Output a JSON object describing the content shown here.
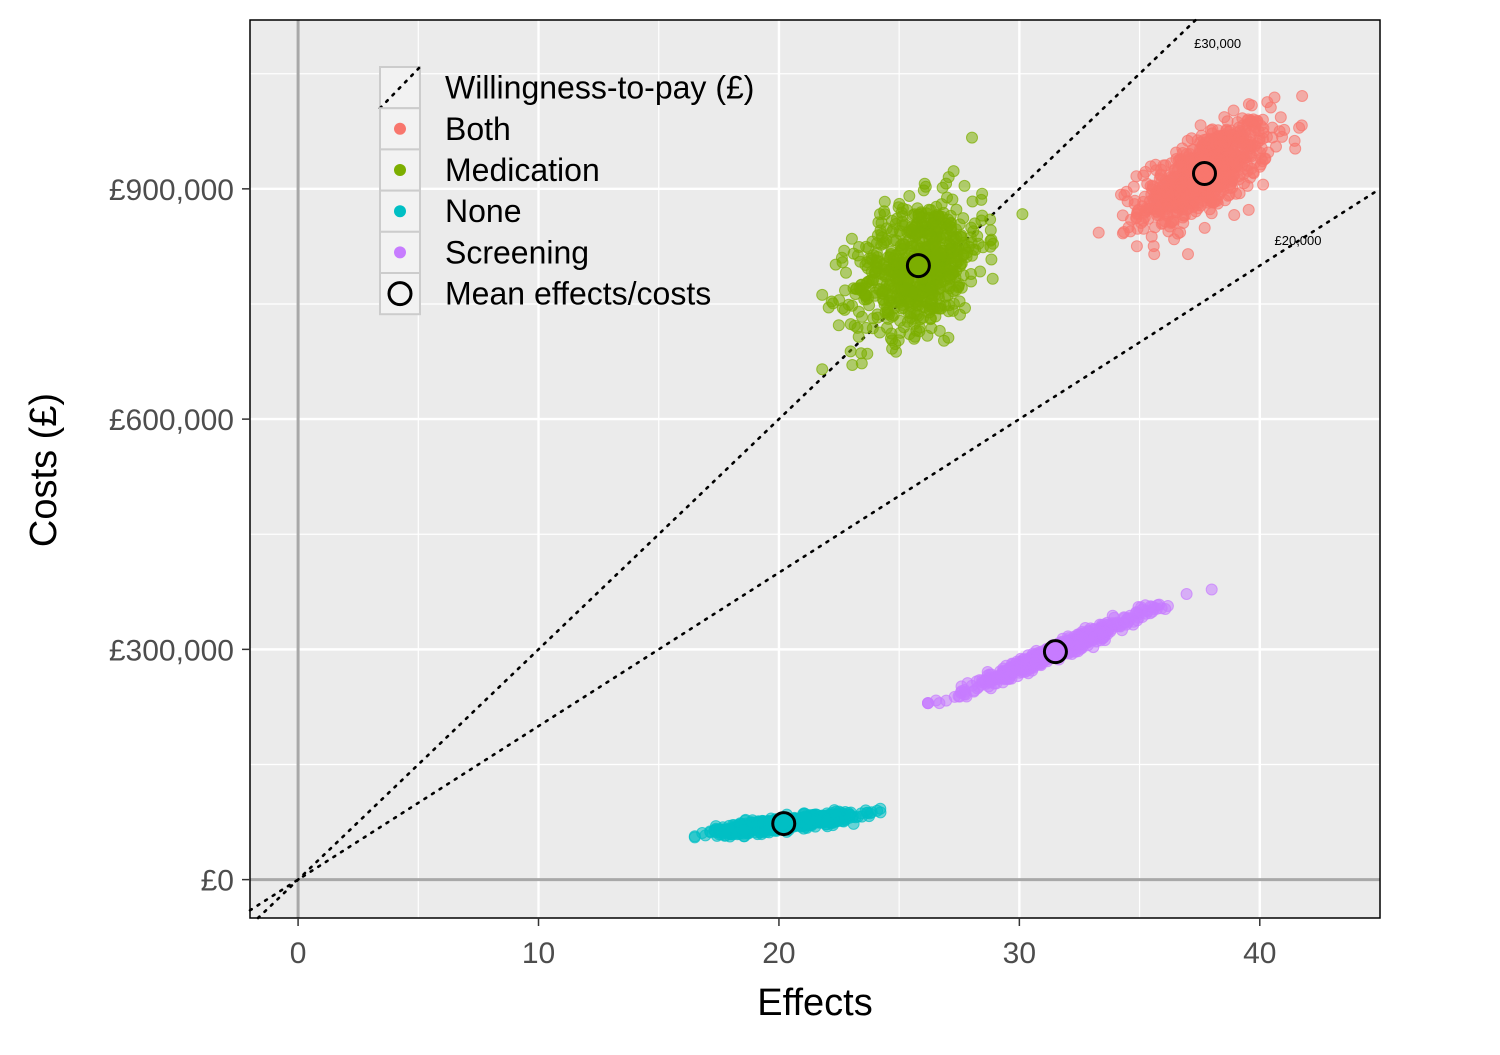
{
  "chart_data": {
    "type": "scatter",
    "title": "",
    "xlabel": "Effects",
    "ylabel": "Costs (£)",
    "xlim": [
      -2,
      45
    ],
    "ylim": [
      -50000,
      1120000
    ],
    "x_ticks": [
      0,
      10,
      20,
      30,
      40
    ],
    "y_ticks": [
      0,
      300000,
      600000,
      900000
    ],
    "y_tick_labels": [
      "£0",
      "£300,000",
      "£600,000",
      "£900,000"
    ],
    "grid": true,
    "legend_position": "top-left",
    "legend_title": "",
    "wtp_legend_label": "Willingness-to-pay (£)",
    "mean_legend_label": "Mean effects/costs",
    "wtp_lines": [
      {
        "slope": 30000,
        "label": "£30,000"
      },
      {
        "slope": 20000,
        "label": "£20,000"
      }
    ],
    "series": [
      {
        "name": "Both",
        "color": "#F8766D",
        "mean": [
          37.7,
          920000
        ],
        "cloud": {
          "x_range": [
            33.3,
            42.9
          ],
          "y_range": [
            815000,
            1075000
          ],
          "corr": 0.65,
          "sx": 1.35,
          "sy": 34000
        }
      },
      {
        "name": "Medication",
        "color": "#7CAE00",
        "mean": [
          25.8,
          800000
        ],
        "cloud": {
          "x_range": [
            21.8,
            30.8
          ],
          "y_range": [
            665000,
            995000
          ],
          "corr": 0.35,
          "sx": 1.35,
          "sy": 44000
        }
      },
      {
        "name": "None",
        "color": "#00BFC4",
        "mean": [
          20.2,
          73000
        ],
        "cloud": {
          "x_range": [
            16.5,
            25.5
          ],
          "y_range": [
            55000,
            105000
          ],
          "corr": 0.8,
          "sx": 1.4,
          "sy": 6500
        }
      },
      {
        "name": "Screening",
        "color": "#C77CFF",
        "mean": [
          31.5,
          297000
        ],
        "cloud": {
          "x_range": [
            26.2,
            38.0
          ],
          "y_range": [
            230000,
            378000
          ],
          "corr": 0.98,
          "sx": 1.8,
          "sy": 25000
        }
      }
    ]
  }
}
